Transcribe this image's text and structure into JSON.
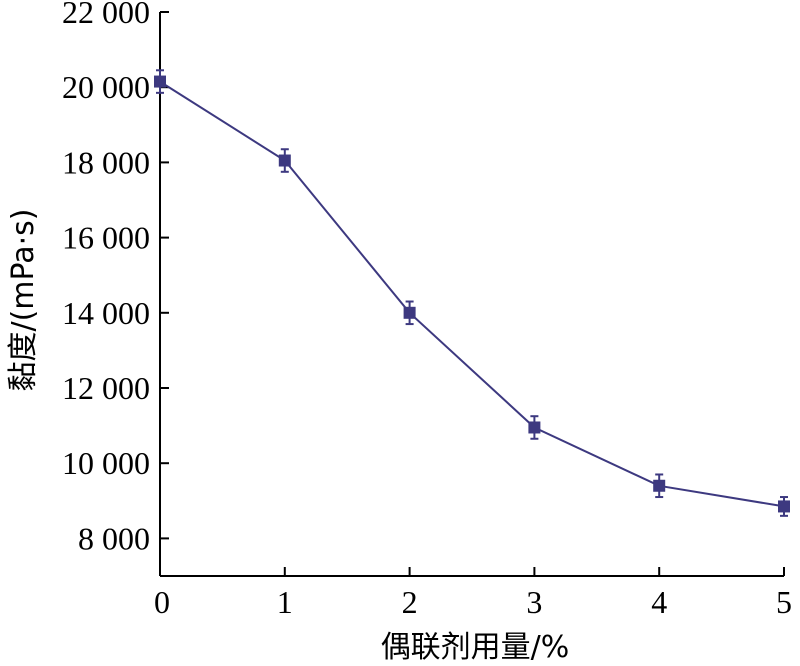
{
  "chart_data": {
    "type": "line",
    "xlabel": "偶联剂用量/%",
    "ylabel": "黏度/(mPa·s)",
    "xlim": [
      0,
      5
    ],
    "ylim": [
      7000,
      22000
    ],
    "x_ticks": [
      0,
      1,
      2,
      3,
      4,
      5
    ],
    "x_tick_labels": [
      "0",
      "1",
      "2",
      "3",
      "4",
      "5"
    ],
    "y_ticks": [
      8000,
      10000,
      12000,
      14000,
      16000,
      18000,
      20000,
      22000
    ],
    "y_tick_labels": [
      "8 000",
      "10 000",
      "12 000",
      "14 000",
      "16 000",
      "18 000",
      "20 000",
      "22 000"
    ],
    "grid": false,
    "color": "#3d3980",
    "series": [
      {
        "x": [
          0,
          1,
          2,
          3,
          4,
          5
        ],
        "y": [
          20150,
          18050,
          14000,
          10950,
          9400,
          8850
        ],
        "error": [
          300,
          300,
          300,
          300,
          300,
          250
        ]
      }
    ]
  }
}
